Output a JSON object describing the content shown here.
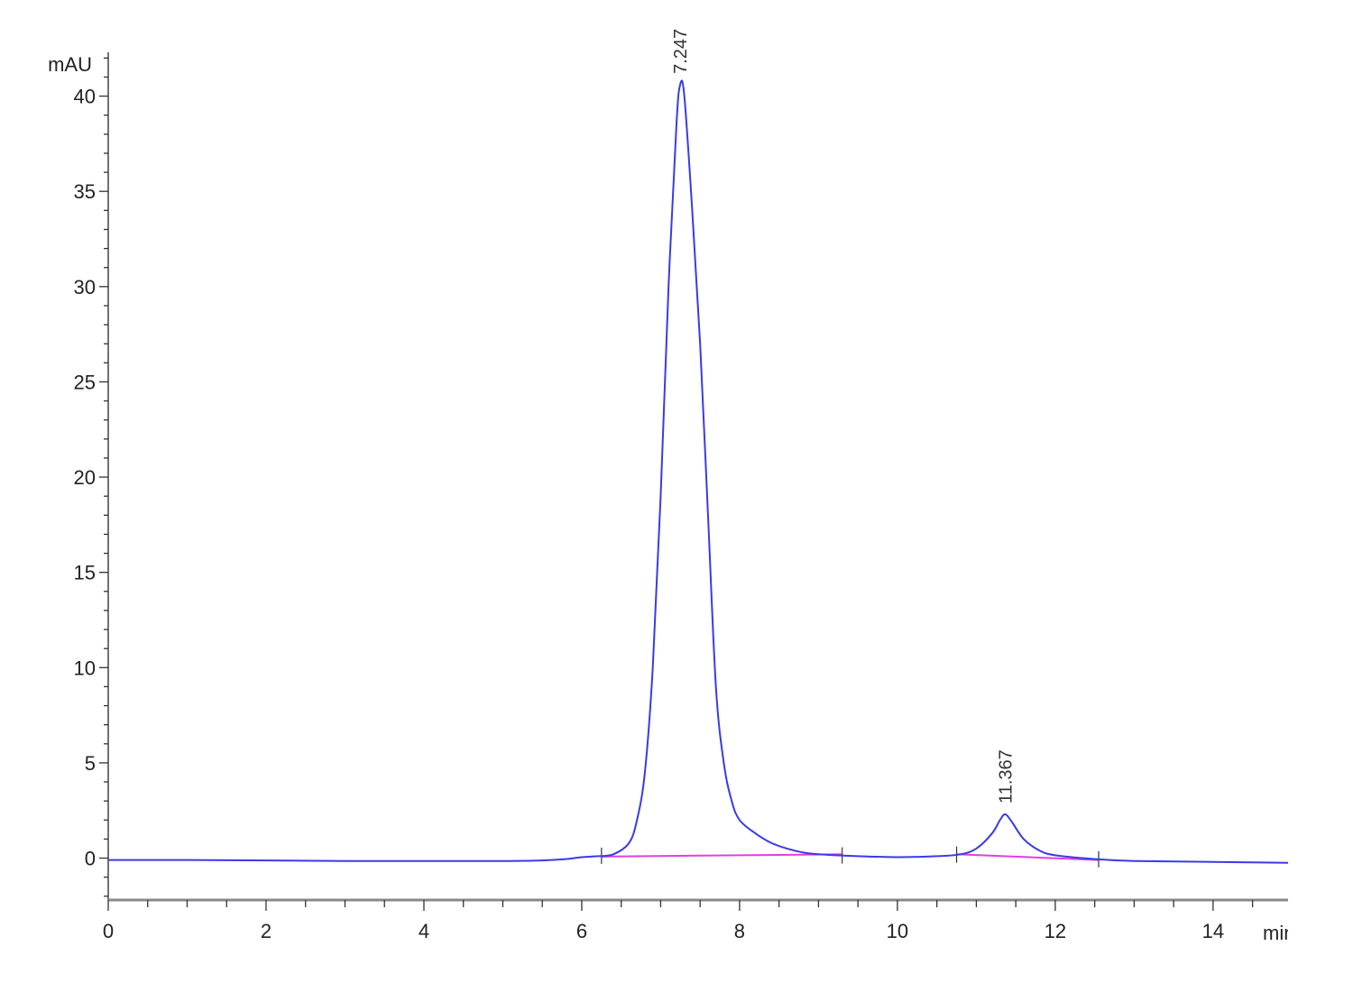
{
  "chart_data": {
    "type": "line",
    "title": "",
    "xlabel": "min",
    "ylabel": "mAU",
    "xlim": [
      0,
      14.95
    ],
    "ylim": [
      -2.2,
      42.3
    ],
    "x_ticks": [
      0,
      2,
      4,
      6,
      8,
      10,
      12,
      14
    ],
    "y_ticks": [
      0,
      5,
      10,
      15,
      20,
      25,
      30,
      35,
      40
    ],
    "x_minor_step": 0.5,
    "y_minor_step": 1,
    "grid": false,
    "series": [
      {
        "color": "#3a3ae8",
        "x": [
          0,
          1,
          2,
          3,
          4,
          5,
          5.5,
          5.8,
          6.0,
          6.2,
          6.4,
          6.6,
          6.7,
          6.8,
          6.9,
          7.0,
          7.1,
          7.2,
          7.247,
          7.3,
          7.4,
          7.5,
          7.6,
          7.7,
          7.8,
          7.9,
          8.0,
          8.2,
          8.4,
          8.6,
          8.8,
          9.0,
          9.5,
          10,
          10.5,
          10.8,
          11.0,
          11.2,
          11.3,
          11.367,
          11.45,
          11.6,
          11.8,
          12.0,
          12.5,
          13,
          14,
          14.95
        ],
        "y": [
          -0.1,
          -0.1,
          -0.12,
          -0.15,
          -0.15,
          -0.15,
          -0.12,
          -0.05,
          0.05,
          0.1,
          0.2,
          0.8,
          2.0,
          4.5,
          10,
          19,
          30,
          38.5,
          40.6,
          40,
          34,
          27,
          18,
          9,
          5,
          3,
          2.0,
          1.3,
          0.8,
          0.5,
          0.3,
          0.2,
          0.1,
          0.05,
          0.1,
          0.2,
          0.5,
          1.3,
          2.0,
          2.3,
          1.9,
          1.0,
          0.4,
          0.15,
          -0.05,
          -0.15,
          -0.2,
          -0.25
        ]
      }
    ],
    "baselines": {
      "color": "#e040e0",
      "segments": [
        {
          "x": [
            6.25,
            9.3
          ],
          "y": [
            0.08,
            0.2
          ]
        },
        {
          "x": [
            10.75,
            12.55
          ],
          "y": [
            0.2,
            -0.1
          ]
        }
      ]
    },
    "integration_marks": [
      6.25,
      9.3,
      10.75,
      12.55
    ],
    "peak_labels": [
      {
        "rt": "7.247",
        "x": 7.247,
        "y": 40.6
      },
      {
        "rt": "11.367",
        "x": 11.367,
        "y": 2.3
      }
    ]
  }
}
